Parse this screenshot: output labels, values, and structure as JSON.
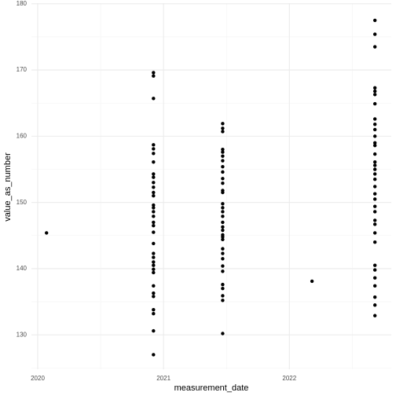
{
  "chart_data": {
    "type": "scatter",
    "x_label": "measurement_date",
    "y_label": "value_as_number",
    "color": "#000000",
    "grid": true,
    "xlim": [
      2019.95,
      2022.81
    ],
    "ylim": [
      124.8,
      180.1
    ],
    "xticks": [
      2020,
      2021,
      2022
    ],
    "yticks": [
      130,
      140,
      150,
      160,
      170,
      180
    ],
    "x": [
      2020.07,
      2020.92,
      2020.92,
      2020.92,
      2020.92,
      2020.92,
      2020.92,
      2020.92,
      2020.92,
      2020.92,
      2020.92,
      2020.92,
      2020.92,
      2020.92,
      2020.92,
      2020.92,
      2020.92,
      2020.92,
      2020.92,
      2020.92,
      2020.92,
      2020.92,
      2020.92,
      2020.92,
      2020.92,
      2020.92,
      2020.92,
      2020.92,
      2020.92,
      2020.92,
      2020.92,
      2020.92,
      2020.92,
      2020.92,
      2020.92,
      2021.47,
      2021.47,
      2021.47,
      2021.47,
      2021.47,
      2021.47,
      2021.47,
      2021.47,
      2021.47,
      2021.47,
      2021.47,
      2021.47,
      2021.47,
      2021.47,
      2021.47,
      2021.47,
      2021.47,
      2021.47,
      2021.47,
      2021.47,
      2021.47,
      2021.47,
      2021.47,
      2021.47,
      2021.47,
      2021.47,
      2021.47,
      2021.47,
      2021.47,
      2021.47,
      2021.47,
      2021.47,
      2021.47,
      2022.18,
      2022.68,
      2022.68,
      2022.68,
      2022.68,
      2022.68,
      2022.68,
      2022.68,
      2022.68,
      2022.68,
      2022.68,
      2022.68,
      2022.68,
      2022.68,
      2022.68,
      2022.68,
      2022.68,
      2022.68,
      2022.68,
      2022.68,
      2022.68,
      2022.68,
      2022.68,
      2022.68,
      2022.68,
      2022.68,
      2022.68,
      2022.68,
      2022.68,
      2022.68,
      2022.68,
      2022.68,
      2022.68,
      2022.68,
      2022.68,
      2022.68
    ],
    "values": [
      145.4,
      169.6,
      169.1,
      165.7,
      158.7,
      158.1,
      157.4,
      156.1,
      154.3,
      153.8,
      153.0,
      152.3,
      151.5,
      151.0,
      149.6,
      149.2,
      148.6,
      147.9,
      147.0,
      146.5,
      145.5,
      143.8,
      142.3,
      141.7,
      141.0,
      140.5,
      139.9,
      139.4,
      137.4,
      136.3,
      135.8,
      133.8,
      133.2,
      130.6,
      127.0,
      161.9,
      161.2,
      160.7,
      158.0,
      157.6,
      157.0,
      156.3,
      155.4,
      154.6,
      153.6,
      152.9,
      151.8,
      151.5,
      149.8,
      149.2,
      148.6,
      147.9,
      147.0,
      146.3,
      145.8,
      145.1,
      144.8,
      144.4,
      143.0,
      142.3,
      141.5,
      140.4,
      139.6,
      137.6,
      137.0,
      135.9,
      135.2,
      130.2,
      138.1,
      177.5,
      175.4,
      173.5,
      167.3,
      166.8,
      166.3,
      164.9,
      162.6,
      161.8,
      161.0,
      160.0,
      159.0,
      158.6,
      157.3,
      156.1,
      155.6,
      155.0,
      154.3,
      153.5,
      152.4,
      151.3,
      150.5,
      149.4,
      148.6,
      147.3,
      146.7,
      145.4,
      144.0,
      140.5,
      139.8,
      138.6,
      137.4,
      135.7,
      134.5,
      132.9
    ]
  }
}
